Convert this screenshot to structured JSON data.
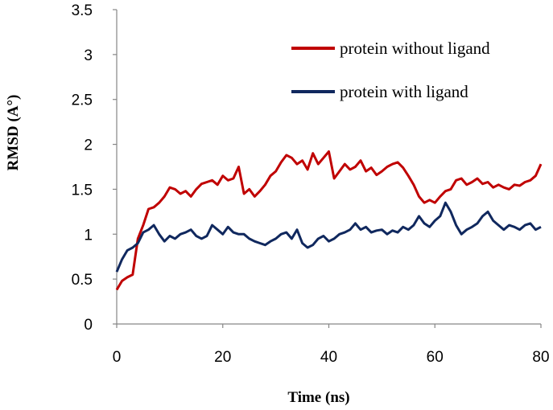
{
  "chart_data": {
    "type": "line",
    "title": "",
    "xlabel": "Time (ns)",
    "ylabel": "RMSD (A°)",
    "xlim": [
      0,
      80
    ],
    "ylim": [
      0,
      3.5
    ],
    "x_ticks": [
      "0",
      "20",
      "40",
      "60",
      "80"
    ],
    "y_ticks": [
      "0",
      "0.5",
      "1",
      "1.5",
      "2",
      "2.5",
      "3",
      "3.5"
    ],
    "grid": false,
    "legend_position": "top-right",
    "series": [
      {
        "name": "protein without ligand",
        "color": "#c00000",
        "x": [
          0,
          1,
          2,
          3,
          4,
          5,
          6,
          7,
          8,
          9,
          10,
          11,
          12,
          13,
          14,
          15,
          16,
          17,
          18,
          19,
          20,
          21,
          22,
          23,
          24,
          25,
          26,
          27,
          28,
          29,
          30,
          31,
          32,
          33,
          34,
          35,
          36,
          37,
          38,
          39,
          40,
          41,
          42,
          43,
          44,
          45,
          46,
          47,
          48,
          49,
          50,
          51,
          52,
          53,
          54,
          55,
          56,
          57,
          58,
          59,
          60,
          61,
          62,
          63,
          64,
          65,
          66,
          67,
          68,
          69,
          70,
          71,
          72,
          73,
          74,
          75,
          76,
          77,
          78,
          79,
          80
        ],
        "y": [
          0.38,
          0.48,
          0.52,
          0.55,
          0.95,
          1.1,
          1.28,
          1.3,
          1.35,
          1.42,
          1.52,
          1.5,
          1.45,
          1.48,
          1.42,
          1.5,
          1.56,
          1.58,
          1.6,
          1.55,
          1.65,
          1.6,
          1.62,
          1.75,
          1.45,
          1.5,
          1.42,
          1.48,
          1.55,
          1.65,
          1.7,
          1.8,
          1.88,
          1.85,
          1.78,
          1.82,
          1.72,
          1.9,
          1.78,
          1.85,
          1.92,
          1.62,
          1.7,
          1.78,
          1.72,
          1.75,
          1.82,
          1.7,
          1.74,
          1.66,
          1.7,
          1.75,
          1.78,
          1.8,
          1.74,
          1.65,
          1.55,
          1.42,
          1.35,
          1.38,
          1.35,
          1.42,
          1.48,
          1.5,
          1.6,
          1.62,
          1.55,
          1.58,
          1.62,
          1.56,
          1.58,
          1.52,
          1.55,
          1.52,
          1.5,
          1.55,
          1.54,
          1.58,
          1.6,
          1.65,
          1.78
        ]
      },
      {
        "name": "protein with ligand",
        "color": "#10285e",
        "x": [
          0,
          1,
          2,
          3,
          4,
          5,
          6,
          7,
          8,
          9,
          10,
          11,
          12,
          13,
          14,
          15,
          16,
          17,
          18,
          19,
          20,
          21,
          22,
          23,
          24,
          25,
          26,
          27,
          28,
          29,
          30,
          31,
          32,
          33,
          34,
          35,
          36,
          37,
          38,
          39,
          40,
          41,
          42,
          43,
          44,
          45,
          46,
          47,
          48,
          49,
          50,
          51,
          52,
          53,
          54,
          55,
          56,
          57,
          58,
          59,
          60,
          61,
          62,
          63,
          64,
          65,
          66,
          67,
          68,
          69,
          70,
          71,
          72,
          73,
          74,
          75,
          76,
          77,
          78,
          79,
          80
        ],
        "y": [
          0.58,
          0.72,
          0.82,
          0.85,
          0.9,
          1.02,
          1.05,
          1.1,
          1.0,
          0.92,
          0.98,
          0.95,
          1.0,
          1.02,
          1.05,
          0.98,
          0.95,
          0.98,
          1.1,
          1.05,
          1.0,
          1.08,
          1.02,
          1.0,
          1.0,
          0.95,
          0.92,
          0.9,
          0.88,
          0.92,
          0.95,
          1.0,
          1.02,
          0.95,
          1.05,
          0.9,
          0.85,
          0.88,
          0.95,
          0.98,
          0.92,
          0.95,
          1.0,
          1.02,
          1.05,
          1.12,
          1.05,
          1.08,
          1.02,
          1.04,
          1.05,
          1.0,
          1.04,
          1.02,
          1.08,
          1.05,
          1.1,
          1.2,
          1.12,
          1.08,
          1.15,
          1.2,
          1.35,
          1.25,
          1.1,
          1.0,
          1.05,
          1.08,
          1.12,
          1.2,
          1.25,
          1.15,
          1.1,
          1.05,
          1.1,
          1.08,
          1.05,
          1.1,
          1.12,
          1.05,
          1.08
        ]
      }
    ]
  }
}
